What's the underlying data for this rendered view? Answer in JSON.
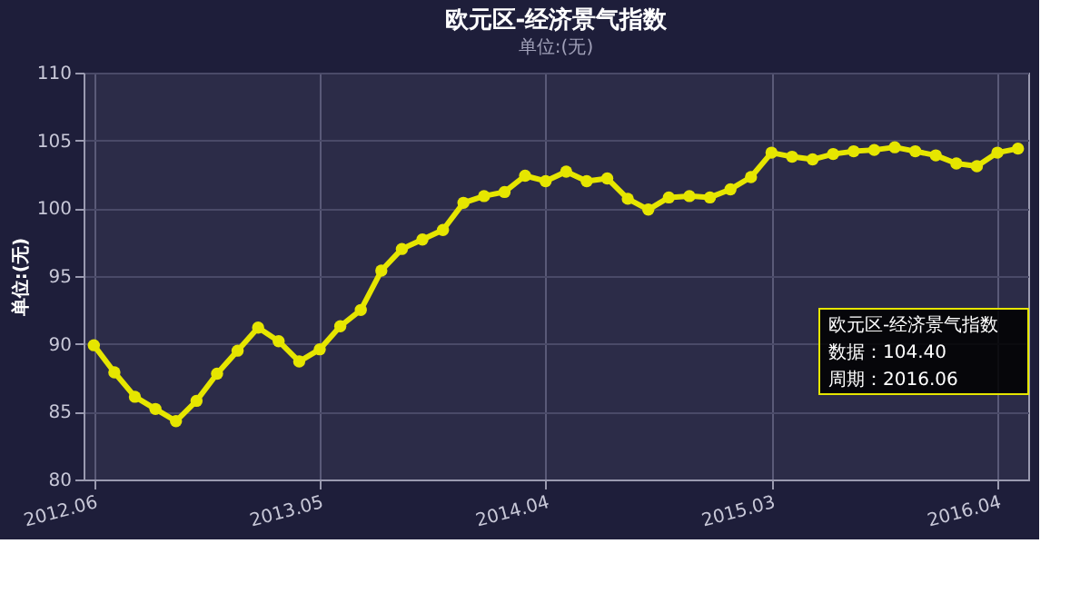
{
  "chart_data": {
    "type": "line",
    "title": "欧元区-经济景气指数",
    "subtitle": "单位:(无)",
    "ylabel": "单位:(无)",
    "categories": [
      "2012.06",
      null,
      null,
      null,
      null,
      null,
      null,
      null,
      null,
      null,
      null,
      "2013.05",
      null,
      null,
      null,
      null,
      null,
      null,
      null,
      null,
      null,
      null,
      "2014.04",
      null,
      null,
      null,
      null,
      null,
      null,
      null,
      null,
      null,
      null,
      "2015.03",
      null,
      null,
      null,
      null,
      null,
      null,
      null,
      null,
      null,
      null,
      "2016.04",
      null
    ],
    "series": [
      {
        "color": "#e6e600",
        "values": [
          89.9,
          87.9,
          86.1,
          85.2,
          84.3,
          85.8,
          87.8,
          89.5,
          91.2,
          90.2,
          88.7,
          89.6,
          91.3,
          92.5,
          95.4,
          97.0,
          97.7,
          98.4,
          100.4,
          100.9,
          101.2,
          102.4,
          102.0,
          102.7,
          102.0,
          102.2,
          100.7,
          99.9,
          100.8,
          100.9,
          100.8,
          101.4,
          102.3,
          104.1,
          103.8,
          103.6,
          104.0,
          104.2,
          104.3,
          104.5,
          104.2,
          103.9,
          103.3,
          103.1,
          104.1,
          104.4
        ]
      }
    ],
    "ylim": [
      80,
      110
    ],
    "yticks": [
      80,
      85,
      90,
      95,
      100,
      105,
      110
    ],
    "grid": true,
    "marker": "circle",
    "line_style": "solid",
    "legend": false,
    "annotations": [
      "欧元区-经济景气指数",
      "数据：104.40",
      "周期：2016.06"
    ]
  }
}
